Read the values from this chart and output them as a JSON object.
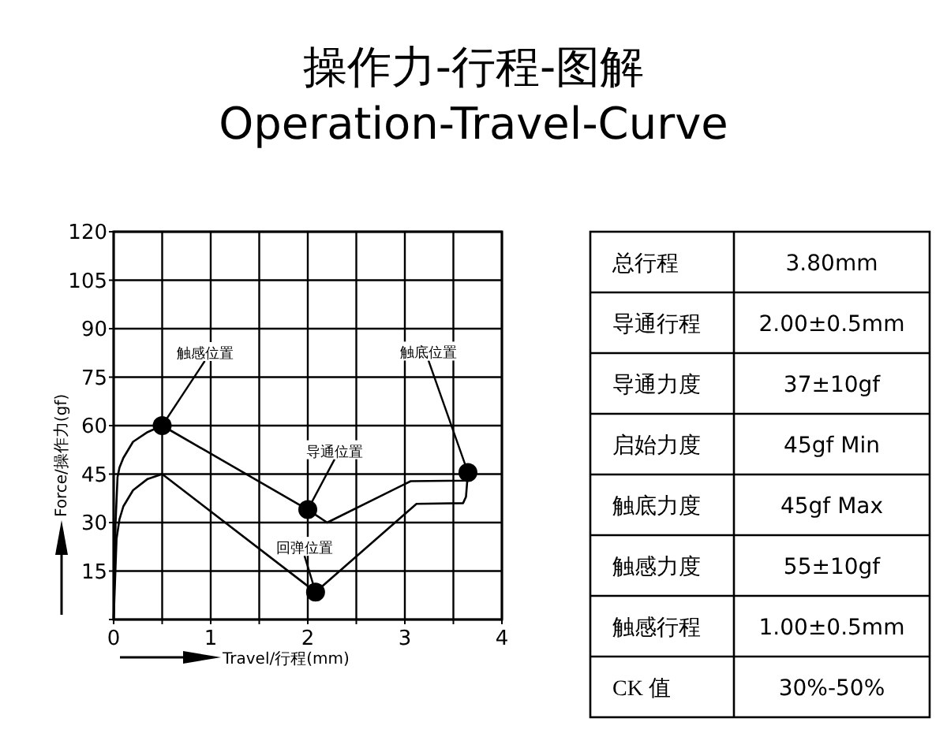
{
  "chart_data": [
    {
      "type": "line",
      "title": "操作力-行程-图解",
      "subtitle": "Operation-Travel-Curve",
      "xlabel": "Travel/行程(mm)",
      "ylabel": "Force/操作力(gf)",
      "xlim": [
        0,
        4
      ],
      "ylim": [
        0,
        120
      ],
      "xticks": [
        0,
        {
          "value": 0.5,
          "label": null
        },
        1,
        {
          "value": 1.5,
          "label": null
        },
        2,
        {
          "value": 2.5,
          "label": null
        },
        3,
        {
          "value": 3.5,
          "label": null
        },
        4
      ],
      "yticks": [
        {
          "value": 0,
          "label": null
        },
        15,
        30,
        45,
        60,
        75,
        90,
        105,
        120
      ],
      "grid": true,
      "series": [
        {
          "color": "#000000",
          "x": [
            0,
            0.02,
            0.04,
            0.06,
            0.1,
            0.2,
            0.35,
            0.5,
            2.0,
            2.2,
            3.06,
            3.62,
            3.65
          ],
          "values": [
            0,
            30,
            44,
            47,
            50,
            55,
            58,
            60,
            34,
            30,
            42.8,
            43,
            45.5
          ]
        },
        {
          "color": "#000000",
          "x": [
            0,
            0.03,
            0.06,
            0.1,
            0.2,
            0.35,
            0.5,
            2.08,
            3.12,
            3.6,
            3.63,
            3.65
          ],
          "values": [
            0,
            25,
            31,
            35,
            40,
            43.5,
            45,
            8.5,
            35.8,
            36,
            38,
            45.5
          ]
        },
        {
          "type": "scatter",
          "marker": "circle",
          "color": "#000000",
          "x": [
            0.5,
            2.0,
            2.08,
            3.65
          ],
          "values": [
            60,
            34,
            8.5,
            45.5
          ]
        }
      ],
      "annotations": [
        {
          "text": "触感位置",
          "x": 0.5,
          "y": 60
        },
        {
          "text": "导通位置",
          "x": 2.0,
          "y": 34
        },
        {
          "text": "回弹位置",
          "x": 2.08,
          "y": 8.5
        },
        {
          "text": "触底位置",
          "x": 3.65,
          "y": 45.5
        }
      ]
    },
    {
      "type": "other",
      "annotations": [
        "总行程",
        "3.80mm",
        "导通行程",
        "2.00±0.5mm",
        "导通力度",
        "37±10gf",
        "启始力度",
        "45gf  Min",
        "触底力度",
        "45gf  Max",
        "触感力度",
        "55±10gf",
        "触感行程",
        "1.00±0.5mm",
        "CK 值",
        "30%-50%"
      ]
    }
  ]
}
